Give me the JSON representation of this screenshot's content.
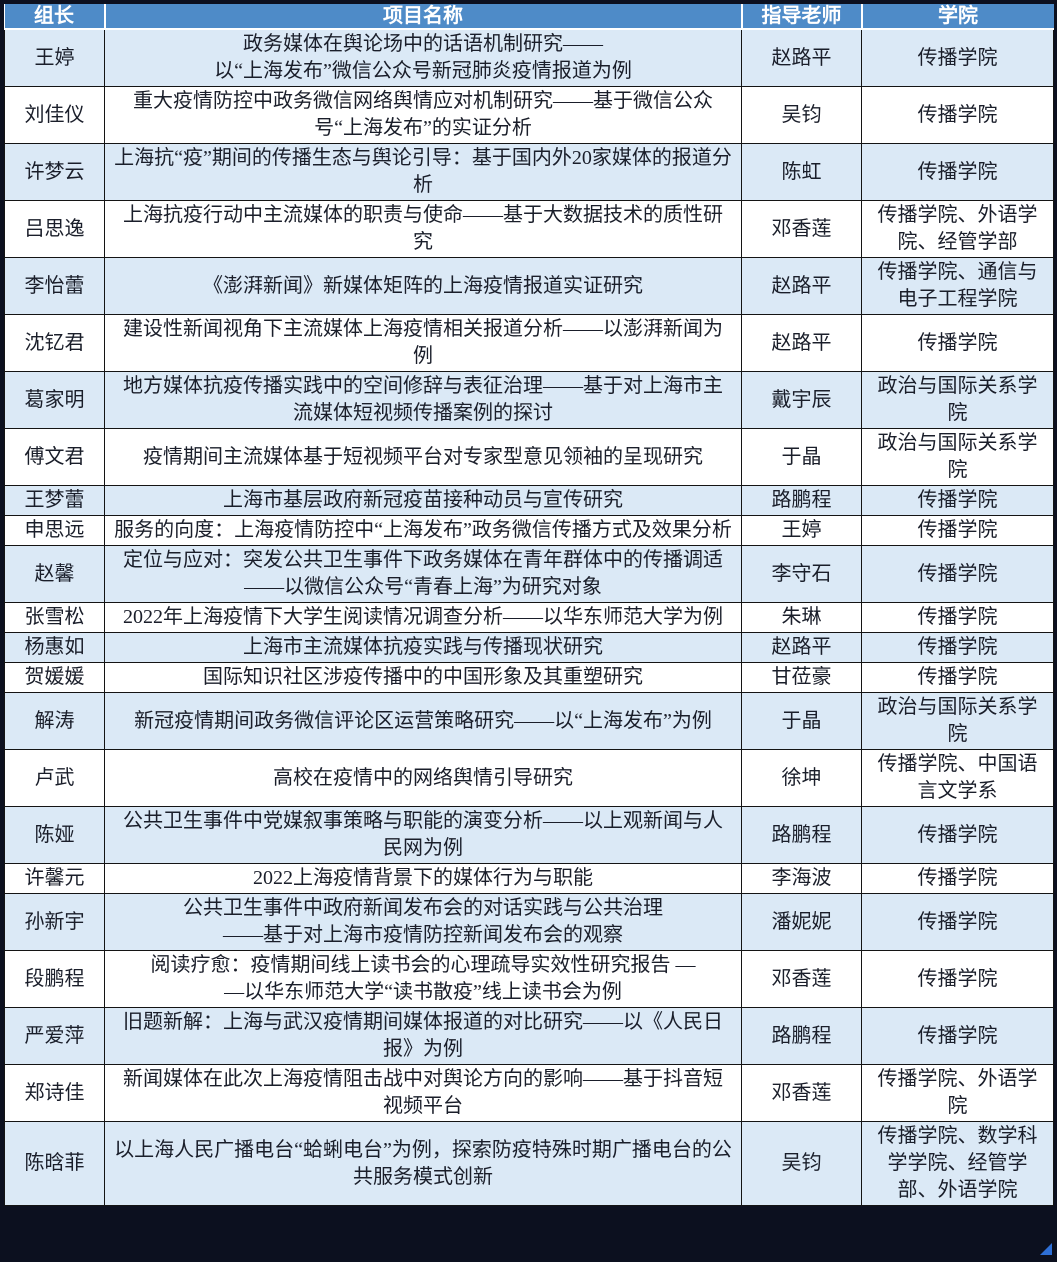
{
  "colors": {
    "header_bg": "#4e8bc8",
    "header_text": "#ffffff",
    "row_alt_bg": "#dbe9f6",
    "row_bg": "#ffffff",
    "grid_border": "#141414",
    "outer_frame": "#0c101f",
    "body_text": "#1a1e2a",
    "corner_artifact": "#2e6fd6"
  },
  "table": {
    "headers": {
      "leader": "组长",
      "project": "项目名称",
      "advisor": "指导老师",
      "college": "学院"
    },
    "rows": [
      {
        "leader": "王婷",
        "project": "政务媒体在舆论场中的话语机制研究——\n以“上海发布”微信公众号新冠肺炎疫情报道为例",
        "advisor": "赵路平",
        "college": "传播学院"
      },
      {
        "leader": "刘佳仪",
        "project": "重大疫情防控中政务微信网络舆情应对机制研究——基于微信公众号“上海发布”的实证分析",
        "advisor": "吴钧",
        "college": "传播学院"
      },
      {
        "leader": "许梦云",
        "project": "上海抗“疫”期间的传播生态与舆论引导：基于国内外20家媒体的报道分析",
        "advisor": "陈虹",
        "college": "传播学院"
      },
      {
        "leader": "吕思逸",
        "project": "上海抗疫行动中主流媒体的职责与使命——基于大数据技术的质性研究",
        "advisor": "邓香莲",
        "college": "传播学院、外语学院、经管学部"
      },
      {
        "leader": "李怡蕾",
        "project": "《澎湃新闻》新媒体矩阵的上海疫情报道实证研究",
        "advisor": "赵路平",
        "college": "传播学院、通信与电子工程学院"
      },
      {
        "leader": "沈钇君",
        "project": "建设性新闻视角下主流媒体上海疫情相关报道分析——以澎湃新闻为例",
        "advisor": "赵路平",
        "college": "传播学院"
      },
      {
        "leader": "葛家明",
        "project": "地方媒体抗疫传播实践中的空间修辞与表征治理——基于对上海市主流媒体短视频传播案例的探讨",
        "advisor": "戴宇辰",
        "college": "政治与国际关系学院"
      },
      {
        "leader": "傅文君",
        "project": "疫情期间主流媒体基于短视频平台对专家型意见领袖的呈现研究",
        "advisor": "于晶",
        "college": "政治与国际关系学院"
      },
      {
        "leader": "王梦蕾",
        "project": "上海市基层政府新冠疫苗接种动员与宣传研究",
        "advisor": "路鹏程",
        "college": "传播学院"
      },
      {
        "leader": "申思远",
        "project": "服务的向度：上海疫情防控中“上海发布”政务微信传播方式及效果分析",
        "advisor": "王婷",
        "college": "传播学院"
      },
      {
        "leader": "赵馨",
        "project": "定位与应对：突发公共卫生事件下政务媒体在青年群体中的传播调适\n——以微信公众号“青春上海”为研究对象",
        "advisor": "李守石",
        "college": "传播学院"
      },
      {
        "leader": "张雪松",
        "project": "2022年上海疫情下大学生阅读情况调查分析——以华东师范大学为例",
        "advisor": "朱琳",
        "college": "传播学院"
      },
      {
        "leader": "杨惠如",
        "project": "上海市主流媒体抗疫实践与传播现状研究",
        "advisor": "赵路平",
        "college": "传播学院"
      },
      {
        "leader": "贺媛媛",
        "project": "国际知识社区涉疫传播中的中国形象及其重塑研究",
        "advisor": "甘莅豪",
        "college": "传播学院"
      },
      {
        "leader": "解涛",
        "project": "新冠疫情期间政务微信评论区运营策略研究——以“上海发布”为例",
        "advisor": "于晶",
        "college": "政治与国际关系学院"
      },
      {
        "leader": "卢武",
        "project": "高校在疫情中的网络舆情引导研究",
        "advisor": "徐坤",
        "college": "传播学院、中国语言文学系"
      },
      {
        "leader": "陈娅",
        "project": "公共卫生事件中党媒叙事策略与职能的演变分析——以上观新闻与人民网为例",
        "advisor": "路鹏程",
        "college": "传播学院"
      },
      {
        "leader": "许馨元",
        "project": "2022上海疫情背景下的媒体行为与职能",
        "advisor": "李海波",
        "college": "传播学院"
      },
      {
        "leader": "孙新宇",
        "project": "公共卫生事件中政府新闻发布会的对话实践与公共治理\n——基于对上海市疫情防控新闻发布会的观察",
        "advisor": "潘妮妮",
        "college": "传播学院"
      },
      {
        "leader": "段鹏程",
        "project": "阅读疗愈：疫情期间线上读书会的心理疏导实效性研究报告 —\n—以华东师范大学“读书散疫”线上读书会为例",
        "advisor": "邓香莲",
        "college": "传播学院"
      },
      {
        "leader": "严爱萍",
        "project": "旧题新解：上海与武汉疫情期间媒体报道的对比研究——以《人民日报》为例",
        "advisor": "路鹏程",
        "college": "传播学院"
      },
      {
        "leader": "郑诗佳",
        "project": "新闻媒体在此次上海疫情阻击战中对舆论方向的影响——基于抖音短视频平台",
        "advisor": "邓香莲",
        "college": "传播学院、外语学院"
      },
      {
        "leader": "陈晗菲",
        "project": "以上海人民广播电台“蛤蜊电台”为例，探索防疫特殊时期广播电台的公共服务模式创新",
        "advisor": "吴钧",
        "college": "传播学院、数学科学学院、经管学部、外语学院"
      }
    ]
  }
}
